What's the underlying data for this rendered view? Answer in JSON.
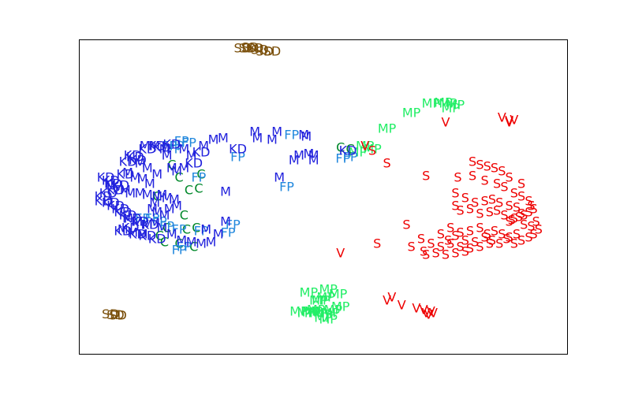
{
  "chart_data": {
    "type": "scatter",
    "marker": "text",
    "title": "",
    "xlabel": "",
    "ylabel": "",
    "xlim": [
      0,
      100
    ],
    "ylim": [
      0,
      100
    ],
    "axis_ticks": "none",
    "grid": false,
    "legend": "none",
    "series": [
      {
        "label": "SD",
        "color": "#7a4f0a",
        "points": [
          [
            33.5,
            97
          ],
          [
            34.5,
            97
          ],
          [
            35,
            97.2
          ],
          [
            36,
            97
          ],
          [
            37,
            96.5
          ],
          [
            38,
            96
          ],
          [
            39.5,
            96
          ],
          [
            6.5,
            12.6
          ],
          [
            7.5,
            12.4
          ],
          [
            8,
            12.2
          ]
        ]
      },
      {
        "label": "MP",
        "color": "#22ee66",
        "points": [
          [
            72,
            79.5
          ],
          [
            74.5,
            79.8
          ],
          [
            75.5,
            79.5
          ],
          [
            76,
            78
          ],
          [
            77,
            79
          ],
          [
            68,
            76.5
          ],
          [
            63,
            71.5
          ],
          [
            57,
            64
          ],
          [
            58.5,
            66
          ],
          [
            60,
            65
          ],
          [
            51,
            20.5
          ],
          [
            53,
            19
          ],
          [
            50.5,
            18
          ],
          [
            49.5,
            17
          ],
          [
            48.5,
            14
          ],
          [
            49,
            13
          ],
          [
            50,
            12.5
          ],
          [
            51.5,
            13
          ],
          [
            52,
            14
          ],
          [
            53.5,
            15
          ],
          [
            48,
            13.5
          ],
          [
            50,
            11.5
          ],
          [
            51,
            11
          ],
          [
            47.5,
            13.2
          ],
          [
            46.5,
            13
          ],
          [
            45,
            13.5
          ],
          [
            47,
            19.5
          ],
          [
            49,
            17
          ]
        ]
      },
      {
        "label": "V",
        "color": "#ee0000",
        "points": [
          [
            75,
            73.5
          ],
          [
            86.5,
            75
          ],
          [
            88,
            74
          ],
          [
            89,
            74.2
          ],
          [
            88,
            73.5
          ],
          [
            58.5,
            66
          ],
          [
            53.5,
            32
          ],
          [
            64,
            18
          ],
          [
            63,
            17
          ],
          [
            66,
            15.5
          ],
          [
            69,
            14.5
          ],
          [
            70.5,
            14
          ],
          [
            71,
            13
          ],
          [
            72,
            13.5
          ],
          [
            71.5,
            12.5
          ],
          [
            72.5,
            13
          ]
        ]
      },
      {
        "label": "C",
        "color": "#00882a",
        "points": [
          [
            19,
            60
          ],
          [
            20.5,
            56
          ],
          [
            25,
            57
          ],
          [
            22.5,
            52
          ],
          [
            24.5,
            52.5
          ],
          [
            16,
            50
          ],
          [
            21.5,
            44
          ],
          [
            18,
            40
          ],
          [
            22,
            39.5
          ],
          [
            24,
            40
          ],
          [
            16.5,
            37.5
          ],
          [
            17.5,
            35.5
          ],
          [
            20.5,
            35
          ],
          [
            23.5,
            34
          ],
          [
            53.5,
            65.5
          ],
          [
            55.5,
            65
          ]
        ]
      },
      {
        "label": "FP",
        "color": "#2288dd",
        "points": [
          [
            21,
            67.5
          ],
          [
            22.5,
            67
          ],
          [
            18.5,
            66
          ],
          [
            19.5,
            65
          ],
          [
            20,
            66
          ],
          [
            24.5,
            56
          ],
          [
            32.5,
            62.5
          ],
          [
            43.5,
            69.5
          ],
          [
            42.5,
            53
          ],
          [
            13,
            43
          ],
          [
            15,
            43
          ],
          [
            16.5,
            42
          ],
          [
            18,
            40.5
          ],
          [
            20.5,
            39.5
          ],
          [
            25,
            39
          ],
          [
            31.5,
            41
          ],
          [
            30.5,
            38.5
          ],
          [
            21.5,
            34
          ],
          [
            20.5,
            33
          ],
          [
            54,
            62
          ],
          [
            55.5,
            62.5
          ]
        ]
      },
      {
        "label": "KD",
        "color": "#2222dd",
        "points": [
          [
            16,
            66
          ],
          [
            17,
            65.5
          ],
          [
            19,
            66.5
          ],
          [
            14,
            65
          ],
          [
            11,
            63
          ],
          [
            12,
            61.5
          ],
          [
            11.5,
            62.5
          ],
          [
            10,
            61
          ],
          [
            9.5,
            57
          ],
          [
            5.5,
            56
          ],
          [
            6.5,
            55
          ],
          [
            7,
            54
          ],
          [
            8.5,
            53.5
          ],
          [
            7.5,
            52
          ],
          [
            6,
            51
          ],
          [
            5,
            50
          ],
          [
            6.5,
            48
          ],
          [
            7.5,
            47
          ],
          [
            5,
            48.5
          ],
          [
            8.5,
            46
          ],
          [
            9,
            45
          ],
          [
            10,
            44
          ],
          [
            11,
            43
          ],
          [
            12.5,
            42
          ],
          [
            14.5,
            41
          ],
          [
            10.5,
            40
          ],
          [
            9,
            39
          ],
          [
            12,
            38
          ],
          [
            14,
            37.5
          ],
          [
            16,
            36.5
          ],
          [
            25,
            64
          ],
          [
            23.5,
            60.5
          ],
          [
            32.5,
            65
          ],
          [
            55,
            64.5
          ]
        ]
      },
      {
        "label": "M",
        "color": "#2222dd",
        "points": [
          [
            13.5,
            66
          ],
          [
            15.5,
            66
          ],
          [
            17.5,
            65
          ],
          [
            18,
            63
          ],
          [
            21.5,
            65
          ],
          [
            23,
            63
          ],
          [
            25.5,
            66
          ],
          [
            27.5,
            68
          ],
          [
            29.5,
            68.5
          ],
          [
            36,
            70.5
          ],
          [
            36.5,
            68.5
          ],
          [
            39.5,
            68
          ],
          [
            40.5,
            70.5
          ],
          [
            46,
            69.5
          ],
          [
            46.5,
            69
          ],
          [
            12.5,
            60.5
          ],
          [
            14,
            59
          ],
          [
            16,
            57
          ],
          [
            19,
            59
          ],
          [
            20,
            58
          ],
          [
            21.5,
            59
          ],
          [
            10,
            57.5
          ],
          [
            11.5,
            56
          ],
          [
            13,
            55.5
          ],
          [
            14.5,
            54
          ],
          [
            6.5,
            53.5
          ],
          [
            8,
            52.5
          ],
          [
            9.5,
            52
          ],
          [
            10.5,
            51
          ],
          [
            12.5,
            51
          ],
          [
            14,
            50.5
          ],
          [
            16,
            50
          ],
          [
            17,
            50.5
          ],
          [
            18,
            49.5
          ],
          [
            19.5,
            49
          ],
          [
            15.5,
            48
          ],
          [
            18.5,
            46
          ],
          [
            20,
            47
          ],
          [
            15,
            46
          ],
          [
            16,
            45
          ],
          [
            17.5,
            44
          ],
          [
            10,
            43
          ],
          [
            12,
            42
          ],
          [
            14,
            41
          ],
          [
            15.5,
            41.5
          ],
          [
            17,
            40
          ],
          [
            19,
            38
          ],
          [
            9,
            39.5
          ],
          [
            11,
            38.5
          ],
          [
            13,
            38
          ],
          [
            21,
            36
          ],
          [
            23,
            35.5
          ],
          [
            25,
            35
          ],
          [
            27,
            35.5
          ],
          [
            28.5,
            38
          ],
          [
            30,
            42
          ],
          [
            41,
            56
          ],
          [
            44,
            61.5
          ],
          [
            45,
            63
          ],
          [
            47,
            63.5
          ],
          [
            48,
            63
          ],
          [
            48,
            61.5
          ],
          [
            30,
            51.5
          ],
          [
            26,
            39.5
          ]
        ]
      },
      {
        "label": "S",
        "color": "#ee0000",
        "points": [
          [
            60,
            64.5
          ],
          [
            63,
            60.5
          ],
          [
            71,
            56.5
          ],
          [
            77.5,
            56
          ],
          [
            80.5,
            61
          ],
          [
            82,
            60
          ],
          [
            83.5,
            59.5
          ],
          [
            85,
            59
          ],
          [
            86.5,
            58
          ],
          [
            88,
            56
          ],
          [
            90.5,
            54
          ],
          [
            80.5,
            56.5
          ],
          [
            83,
            55
          ],
          [
            85.5,
            54
          ],
          [
            87,
            53
          ],
          [
            89,
            51
          ],
          [
            90.5,
            50
          ],
          [
            92,
            48.5
          ],
          [
            92.5,
            47
          ],
          [
            93,
            46
          ],
          [
            92,
            45
          ],
          [
            90.5,
            44.5
          ],
          [
            89,
            43
          ],
          [
            88,
            42
          ],
          [
            77,
            51
          ],
          [
            79,
            49.5
          ],
          [
            81,
            48
          ],
          [
            83,
            48.5
          ],
          [
            84.5,
            49
          ],
          [
            86,
            48
          ],
          [
            88,
            47
          ],
          [
            89.5,
            46.5
          ],
          [
            77,
            47
          ],
          [
            78,
            45.5
          ],
          [
            80,
            46
          ],
          [
            82,
            44.5
          ],
          [
            84,
            45
          ],
          [
            85.5,
            45.5
          ],
          [
            87,
            44
          ],
          [
            88.5,
            42.5
          ],
          [
            90,
            43.5
          ],
          [
            91,
            44
          ],
          [
            76,
            40
          ],
          [
            78,
            38.5
          ],
          [
            80,
            39
          ],
          [
            82,
            40
          ],
          [
            83.5,
            38
          ],
          [
            85,
            39
          ],
          [
            86.5,
            38
          ],
          [
            88,
            37
          ],
          [
            89.5,
            38
          ],
          [
            74,
            38
          ],
          [
            75.5,
            36
          ],
          [
            77,
            37.5
          ],
          [
            79,
            36
          ],
          [
            81,
            35.5
          ],
          [
            83,
            37
          ],
          [
            84.5,
            36
          ],
          [
            86,
            35
          ],
          [
            87.5,
            36.5
          ],
          [
            89,
            35
          ],
          [
            90.5,
            36
          ],
          [
            92,
            37
          ],
          [
            93,
            38
          ],
          [
            94,
            39.5
          ],
          [
            92.5,
            40.5
          ],
          [
            91,
            41
          ],
          [
            93.5,
            42
          ],
          [
            70,
            36.5
          ],
          [
            72,
            35
          ],
          [
            74,
            34
          ],
          [
            76,
            35
          ],
          [
            78,
            34
          ],
          [
            80,
            33.5
          ],
          [
            82,
            34
          ],
          [
            84,
            35
          ],
          [
            68,
            34
          ],
          [
            70.5,
            32.5
          ],
          [
            71,
            31.5
          ],
          [
            73,
            32
          ],
          [
            75,
            31.5
          ],
          [
            77,
            32
          ],
          [
            79,
            32.5
          ],
          [
            61,
            35
          ],
          [
            67,
            41
          ]
        ]
      }
    ]
  }
}
